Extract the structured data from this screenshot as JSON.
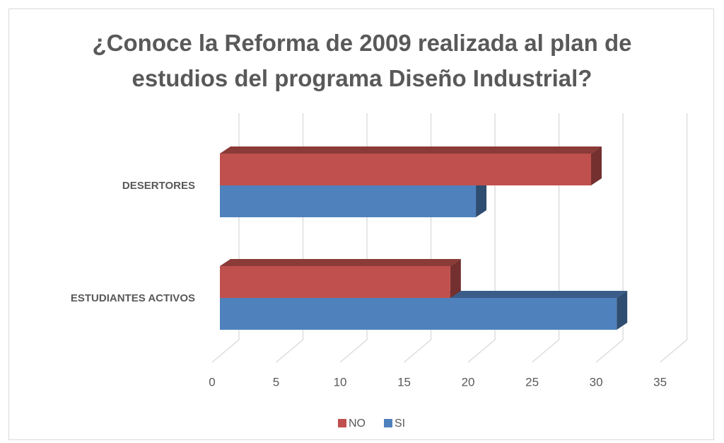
{
  "chart_data": {
    "type": "bar3d",
    "orientation": "horizontal",
    "title": "¿Conoce la Reforma de 2009 realizada al plan de estudios del programa Diseño Industrial?",
    "categories": [
      "DESERTORES",
      "ESTUDIANTES ACTIVOS"
    ],
    "series": [
      {
        "name": "NO",
        "color": "#c0504d",
        "values": [
          29,
          18
        ]
      },
      {
        "name": "SI",
        "color": "#4f81bd",
        "values": [
          20,
          31
        ]
      }
    ],
    "xlim": [
      0,
      35
    ],
    "xticks": [
      0,
      5,
      10,
      15,
      20,
      25,
      30,
      35
    ],
    "grid": true,
    "legend": "bottom"
  }
}
